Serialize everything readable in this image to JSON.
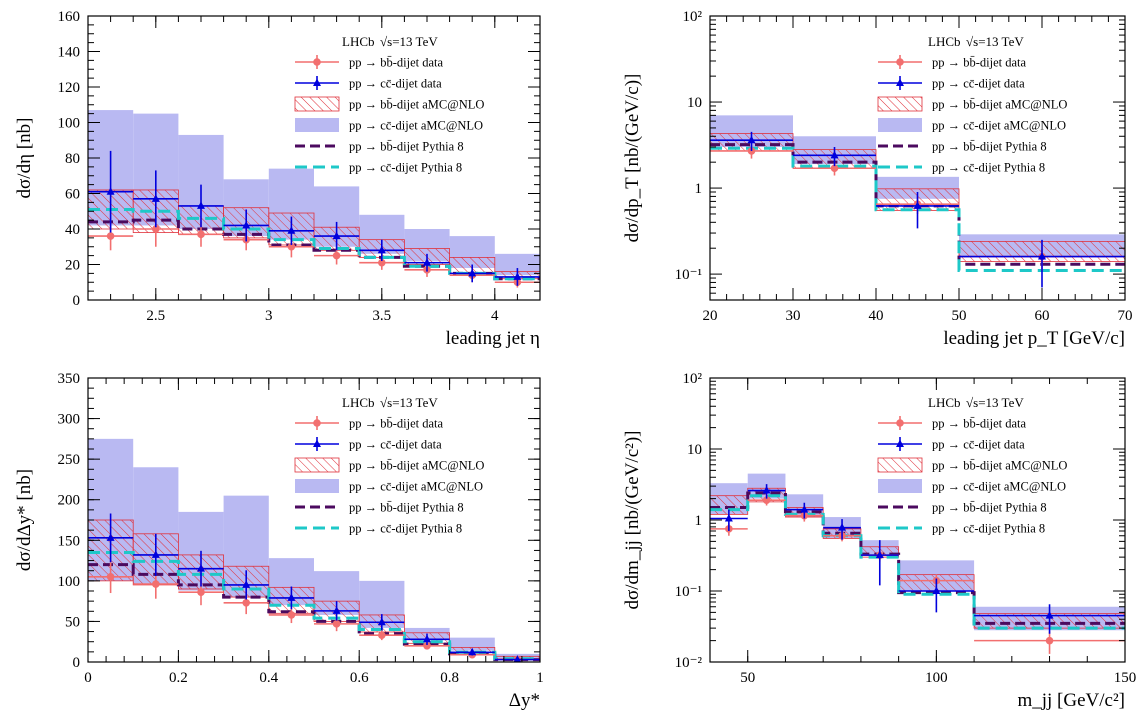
{
  "colors": {
    "bb_data": "#f26f6f",
    "cc_data": "#0000dd",
    "bb_amc": "#e0313b",
    "cc_amc": "#b9b9f2",
    "bb_pythia": "#4b0a5f",
    "cc_pythia": "#1ec8c8"
  },
  "legend": {
    "header_lhcb": "LHCb",
    "header_energy": "√s=13 TeV",
    "entries": [
      {
        "key": "bb_data",
        "label": "pp → bb̄-dijet data"
      },
      {
        "key": "cc_data",
        "label": "pp → cc̄-dijet data"
      },
      {
        "key": "bb_amc",
        "label": "pp → bb̄-dijet aMC@NLO"
      },
      {
        "key": "cc_amc",
        "label": "pp → cc̄-dijet aMC@NLO"
      },
      {
        "key": "bb_pythia",
        "label": "pp → bb̄-dijet Pythia 8"
      },
      {
        "key": "cc_pythia",
        "label": "pp → cc̄-dijet Pythia 8"
      }
    ]
  },
  "chart_data": [
    {
      "type": "line",
      "xlabel": "leading jet η",
      "ylabel": "dσ/dη [nb]",
      "xlim": [
        2.2,
        4.2
      ],
      "ylim": [
        0,
        160
      ],
      "log_y": false,
      "xticks": [
        2.5,
        3,
        3.5,
        4
      ],
      "xtick_labels": [
        "2.5",
        "3",
        "3.5",
        "4"
      ],
      "yticks": [
        0,
        20,
        40,
        60,
        80,
        100,
        120,
        140,
        160
      ],
      "ytick_labels": [
        "0",
        "20",
        "40",
        "60",
        "80",
        "100",
        "120",
        "140",
        "160"
      ],
      "bin_edges": [
        2.2,
        2.4,
        2.6,
        2.8,
        3.0,
        3.2,
        3.4,
        3.6,
        3.8,
        4.0,
        4.2
      ],
      "series": [
        {
          "key": "cc_amc",
          "style": "band",
          "low": [
            42,
            42,
            40,
            36,
            34,
            30,
            26,
            22,
            18,
            14
          ],
          "high": [
            107,
            105,
            93,
            68,
            74,
            64,
            48,
            40,
            36,
            26
          ]
        },
        {
          "key": "bb_amc",
          "style": "hatch",
          "low": [
            40,
            38,
            37,
            35,
            31,
            28,
            24,
            20,
            15,
            12
          ],
          "high": [
            62,
            62,
            53,
            52,
            49,
            41,
            34,
            29,
            24,
            16
          ]
        },
        {
          "key": "bb_pythia",
          "style": "step",
          "values": [
            44,
            45,
            40,
            37,
            31,
            28,
            24,
            19,
            15,
            12
          ]
        },
        {
          "key": "cc_pythia",
          "style": "step",
          "values": [
            51,
            50,
            46,
            40,
            34,
            29,
            24,
            19,
            15,
            12
          ]
        },
        {
          "key": "bb_data",
          "style": "points",
          "x": [
            2.3,
            2.5,
            2.7,
            2.9,
            3.1,
            3.3,
            3.5,
            3.7,
            3.9,
            4.1
          ],
          "values": [
            36,
            40,
            37,
            34,
            30,
            25,
            21,
            17,
            14,
            10
          ],
          "errors": [
            8,
            10,
            7,
            6,
            6,
            5,
            4,
            4,
            4,
            3
          ]
        },
        {
          "key": "cc_data",
          "style": "points",
          "x": [
            2.3,
            2.5,
            2.7,
            2.9,
            3.1,
            3.3,
            3.5,
            3.7,
            3.9,
            4.1
          ],
          "values": [
            61,
            57,
            53,
            42,
            39,
            36,
            28,
            21,
            15,
            13
          ],
          "errors": [
            23,
            16,
            12,
            9,
            8,
            8,
            6,
            5,
            5,
            5
          ]
        }
      ]
    },
    {
      "type": "line",
      "xlabel": "leading jet p_T [GeV/c]",
      "ylabel": "dσ/dp_T [nb/(GeV/c)]",
      "xlim": [
        20,
        70
      ],
      "ylim": [
        0.05,
        100
      ],
      "log_y": true,
      "xticks": [
        20,
        30,
        40,
        50,
        60,
        70
      ],
      "xtick_labels": [
        "20",
        "30",
        "40",
        "50",
        "60",
        "70"
      ],
      "yticks": [
        0.1,
        1,
        10,
        100
      ],
      "ytick_labels": [
        "10⁻¹",
        "1",
        "10",
        "10²"
      ],
      "bin_edges": [
        20,
        30,
        40,
        50,
        70
      ],
      "series": [
        {
          "key": "cc_amc",
          "style": "band",
          "low": [
            3.0,
            1.9,
            0.75,
            0.16
          ],
          "high": [
            7.0,
            4.0,
            1.35,
            0.29
          ]
        },
        {
          "key": "bb_amc",
          "style": "hatch",
          "low": [
            2.7,
            1.7,
            0.55,
            0.14
          ],
          "high": [
            4.3,
            2.8,
            0.98,
            0.24
          ]
        },
        {
          "key": "bb_pythia",
          "style": "step",
          "values": [
            3.2,
            2.0,
            0.62,
            0.13
          ]
        },
        {
          "key": "cc_pythia",
          "style": "step",
          "values": [
            2.9,
            1.8,
            0.56,
            0.11
          ]
        },
        {
          "key": "bb_data",
          "style": "points",
          "x": [
            25,
            35,
            45,
            60
          ],
          "values": [
            2.7,
            1.7,
            0.65,
            0.16
          ],
          "errors": [
            0.5,
            0.3,
            0.15,
            0.05
          ]
        },
        {
          "key": "cc_data",
          "style": "points",
          "x": [
            25,
            35,
            45,
            60
          ],
          "values": [
            3.6,
            2.4,
            0.62,
            0.16
          ],
          "errors": [
            0.9,
            0.6,
            0.28,
            0.09
          ]
        }
      ]
    },
    {
      "type": "line",
      "xlabel": "Δy*",
      "ylabel": "dσ/dΔy* [nb]",
      "xlim": [
        0,
        1
      ],
      "ylim": [
        0,
        350
      ],
      "log_y": false,
      "xticks": [
        0,
        0.2,
        0.4,
        0.6,
        0.8,
        1
      ],
      "xtick_labels": [
        "0",
        "0.2",
        "0.4",
        "0.6",
        "0.8",
        "1"
      ],
      "yticks": [
        0,
        50,
        100,
        150,
        200,
        250,
        300,
        350
      ],
      "ytick_labels": [
        "0",
        "50",
        "100",
        "150",
        "200",
        "250",
        "300",
        "350"
      ],
      "bin_edges": [
        0,
        0.1,
        0.2,
        0.3,
        0.4,
        0.5,
        0.6,
        0.7,
        0.8,
        0.9,
        1.0
      ],
      "series": [
        {
          "key": "cc_amc",
          "style": "band",
          "low": [
            100,
            95,
            88,
            80,
            70,
            58,
            42,
            28,
            14,
            5
          ],
          "high": [
            275,
            240,
            185,
            205,
            128,
            112,
            100,
            42,
            30,
            10
          ]
        },
        {
          "key": "bb_amc",
          "style": "hatch",
          "low": [
            100,
            95,
            90,
            80,
            60,
            50,
            37,
            23,
            12,
            4
          ],
          "high": [
            175,
            158,
            132,
            118,
            92,
            75,
            58,
            36,
            18,
            7
          ]
        },
        {
          "key": "bb_pythia",
          "style": "step",
          "values": [
            120,
            108,
            95,
            80,
            62,
            50,
            35,
            22,
            10,
            3
          ]
        },
        {
          "key": "cc_pythia",
          "style": "step",
          "values": [
            135,
            124,
            108,
            90,
            70,
            54,
            40,
            25,
            12,
            4
          ]
        },
        {
          "key": "bb_data",
          "style": "points",
          "x": [
            0.05,
            0.15,
            0.25,
            0.35,
            0.45,
            0.55,
            0.65,
            0.75,
            0.85,
            0.95
          ],
          "values": [
            105,
            96,
            86,
            73,
            58,
            47,
            33,
            20,
            9,
            3
          ],
          "errors": [
            20,
            18,
            16,
            14,
            10,
            9,
            6,
            4,
            3,
            2
          ]
        },
        {
          "key": "cc_data",
          "style": "points",
          "x": [
            0.05,
            0.15,
            0.25,
            0.35,
            0.45,
            0.55,
            0.65,
            0.75,
            0.85,
            0.95
          ],
          "values": [
            153,
            132,
            115,
            95,
            79,
            63,
            49,
            28,
            12,
            3
          ],
          "errors": [
            30,
            26,
            22,
            18,
            14,
            12,
            10,
            7,
            4,
            2
          ]
        }
      ]
    },
    {
      "type": "line",
      "xlabel": "m_jj [GeV/c²]",
      "ylabel": "dσ/dm_jj [nb/(GeV/c²)]",
      "xlim": [
        40,
        150
      ],
      "ylim": [
        0.01,
        100
      ],
      "log_y": true,
      "xticks": [
        50,
        100,
        150
      ],
      "xtick_labels": [
        "50",
        "100",
        "150"
      ],
      "yticks": [
        0.01,
        0.1,
        1,
        10,
        100
      ],
      "ytick_labels": [
        "10⁻²",
        "10⁻¹",
        "1",
        "10",
        "10²"
      ],
      "bin_edges": [
        40,
        50,
        60,
        70,
        80,
        90,
        110,
        150
      ],
      "series": [
        {
          "key": "cc_amc",
          "style": "band",
          "low": [
            1.2,
            2.0,
            1.1,
            0.55,
            0.32,
            0.1,
            0.028
          ],
          "high": [
            3.3,
            4.5,
            2.3,
            1.1,
            0.52,
            0.27,
            0.06
          ]
        },
        {
          "key": "bb_amc",
          "style": "hatch",
          "low": [
            1.2,
            1.8,
            1.1,
            0.55,
            0.3,
            0.1,
            0.03
          ],
          "high": [
            2.2,
            2.8,
            1.5,
            0.75,
            0.42,
            0.17,
            0.048
          ]
        },
        {
          "key": "bb_pythia",
          "style": "step",
          "values": [
            1.5,
            2.4,
            1.3,
            0.65,
            0.33,
            0.095,
            0.035
          ]
        },
        {
          "key": "cc_pythia",
          "style": "step",
          "values": [
            1.4,
            2.2,
            1.2,
            0.6,
            0.3,
            0.09,
            0.03
          ]
        },
        {
          "key": "bb_data",
          "style": "points",
          "x": [
            45,
            55,
            65,
            75,
            85,
            100,
            130
          ],
          "values": [
            0.75,
            1.9,
            1.15,
            0.6,
            0.32,
            0.14,
            0.02
          ],
          "errors": [
            0.15,
            0.3,
            0.2,
            0.1,
            0.06,
            0.03,
            0.007
          ]
        },
        {
          "key": "cc_data",
          "style": "points",
          "x": [
            45,
            55,
            65,
            75,
            85,
            100,
            130
          ],
          "values": [
            1.05,
            2.6,
            1.4,
            0.78,
            0.32,
            0.1,
            0.045
          ],
          "errors": [
            0.35,
            0.6,
            0.35,
            0.25,
            0.2,
            0.05,
            0.02
          ]
        }
      ]
    }
  ]
}
